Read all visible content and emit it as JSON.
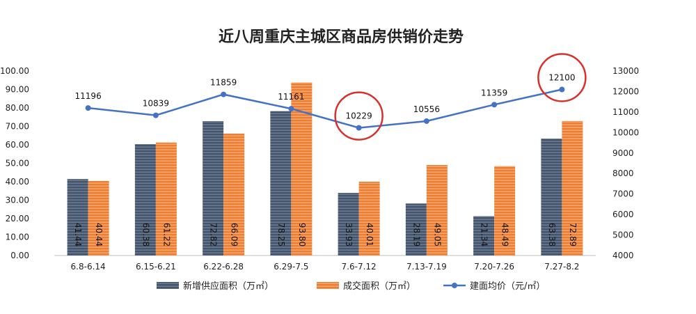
{
  "chart_data": {
    "type": "bar",
    "title": "近八周重庆主城区商品房供销价走势",
    "categories": [
      "6.8-6.14",
      "6.15-6.21",
      "6.22-6.28",
      "6.29-7.5",
      "7.6-7.12",
      "7.13-7.19",
      "7.20-7.26",
      "7.27-8.2"
    ],
    "series": [
      {
        "name": "新增供应面积（万㎡）",
        "type": "bar",
        "axis": "left",
        "values": [
          41.44,
          60.38,
          72.82,
          78.25,
          33.93,
          28.19,
          21.34,
          63.38
        ],
        "labels": [
          "41.44",
          "60.38",
          "72.82",
          "78.25",
          "33.93",
          "28.19",
          "21.34",
          "63.38"
        ],
        "color": "#44546a"
      },
      {
        "name": "成交面积（万㎡）",
        "type": "bar",
        "axis": "left",
        "values": [
          40.44,
          61.22,
          66.09,
          93.8,
          40.01,
          49.05,
          48.49,
          72.89
        ],
        "labels": [
          "40.44",
          "61.22",
          "66.09",
          "93.80",
          "40.01",
          "49.05",
          "48.49",
          "72.89"
        ],
        "color": "#ed7d31"
      },
      {
        "name": "建面均价（元/㎡）",
        "type": "line",
        "axis": "right",
        "values": [
          11196,
          10839,
          11859,
          11161,
          10229,
          10556,
          11359,
          12100
        ],
        "labels": [
          "11196",
          "10839",
          "11859",
          "11161",
          "10229",
          "10556",
          "11359",
          "12100"
        ],
        "color": "#4472c4"
      }
    ],
    "y_left": {
      "ylim": [
        0,
        100
      ],
      "ticks": [
        "0.00",
        "10.00",
        "20.00",
        "30.00",
        "40.00",
        "50.00",
        "60.00",
        "70.00",
        "80.00",
        "90.00",
        "100.00"
      ]
    },
    "y_right": {
      "ylim": [
        4000,
        13000
      ],
      "ticks": [
        "4000",
        "5000",
        "6000",
        "7000",
        "8000",
        "9000",
        "10000",
        "11000",
        "12000",
        "13000"
      ]
    },
    "highlighted_points": [
      4,
      7
    ],
    "highlight_color": "#d9302c",
    "grid": false,
    "legend_position": "bottom"
  }
}
